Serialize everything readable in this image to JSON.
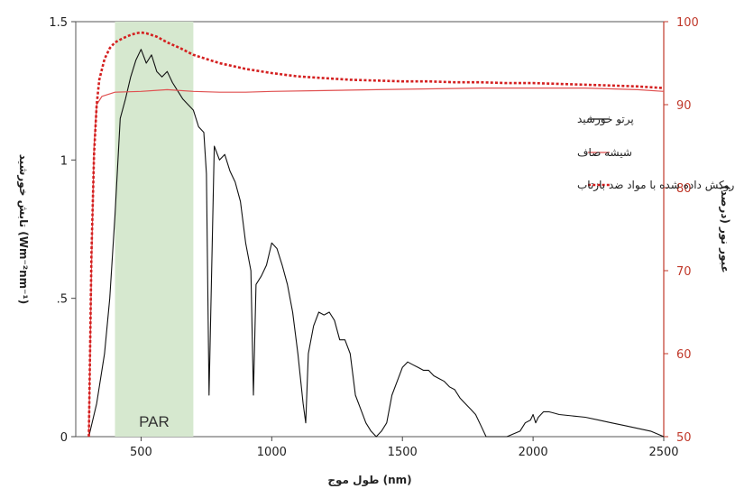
{
  "chart_data": {
    "type": "line",
    "title": "",
    "xlabel": "طول موج (nm)",
    "ylabel_left": "تابش خورشید (Wm⁻²nm⁻¹)",
    "ylabel_right": "عبور نور (درصد)",
    "xlim": [
      250,
      2500
    ],
    "ylim_left": [
      0,
      1.5
    ],
    "ylim_right": [
      50,
      100
    ],
    "x_ticks": [
      500,
      1000,
      1500,
      2000,
      2500
    ],
    "x_tick_labels": [
      "500",
      "1000",
      "1500",
      "2000",
      "2500"
    ],
    "y_left_ticks": [
      0,
      0.5,
      1,
      1.5
    ],
    "y_left_tick_labels": [
      "0",
      ".5",
      "1",
      "1.5"
    ],
    "y_right_ticks": [
      50,
      60,
      70,
      80,
      90,
      100
    ],
    "y_right_tick_labels": [
      "50",
      "60",
      "70",
      "80",
      "90",
      "100"
    ],
    "band": {
      "label": "PAR",
      "x_start": 400,
      "x_end": 700,
      "color": "#d6e8cf"
    },
    "legend_position": "right-upper",
    "series": [
      {
        "name": "پرتو خورشید",
        "axis": "left",
        "color": "#111111",
        "style": "solid",
        "x": [
          300,
          330,
          360,
          380,
          400,
          420,
          440,
          460,
          480,
          500,
          520,
          540,
          560,
          580,
          600,
          620,
          640,
          660,
          680,
          700,
          720,
          740,
          750,
          760,
          780,
          800,
          820,
          840,
          860,
          880,
          900,
          920,
          930,
          940,
          960,
          980,
          1000,
          1020,
          1040,
          1060,
          1080,
          1100,
          1120,
          1130,
          1140,
          1160,
          1180,
          1200,
          1220,
          1240,
          1260,
          1280,
          1300,
          1320,
          1340,
          1360,
          1380,
          1400,
          1420,
          1440,
          1460,
          1480,
          1500,
          1520,
          1540,
          1560,
          1580,
          1600,
          1620,
          1640,
          1660,
          1680,
          1700,
          1720,
          1740,
          1760,
          1780,
          1800,
          1820,
          1850,
          1900,
          1950,
          1970,
          1990,
          2000,
          2010,
          2020,
          2040,
          2060,
          2080,
          2100,
          2150,
          2200,
          2250,
          2300,
          2350,
          2400,
          2450,
          2500
        ],
        "values": [
          0.0,
          0.12,
          0.3,
          0.5,
          0.8,
          1.15,
          1.22,
          1.3,
          1.36,
          1.4,
          1.35,
          1.38,
          1.32,
          1.3,
          1.32,
          1.28,
          1.25,
          1.22,
          1.2,
          1.18,
          1.12,
          1.1,
          0.95,
          0.15,
          1.05,
          1.0,
          1.02,
          0.96,
          0.92,
          0.85,
          0.7,
          0.6,
          0.15,
          0.55,
          0.58,
          0.62,
          0.7,
          0.68,
          0.62,
          0.55,
          0.45,
          0.3,
          0.12,
          0.05,
          0.3,
          0.4,
          0.45,
          0.44,
          0.45,
          0.42,
          0.35,
          0.35,
          0.3,
          0.15,
          0.1,
          0.05,
          0.02,
          0.0,
          0.02,
          0.05,
          0.15,
          0.2,
          0.25,
          0.27,
          0.26,
          0.25,
          0.24,
          0.24,
          0.22,
          0.21,
          0.2,
          0.18,
          0.17,
          0.14,
          0.12,
          0.1,
          0.08,
          0.04,
          0.0,
          0.0,
          0.0,
          0.02,
          0.05,
          0.06,
          0.08,
          0.05,
          0.07,
          0.09,
          0.09,
          0.085,
          0.08,
          0.075,
          0.07,
          0.06,
          0.05,
          0.04,
          0.03,
          0.02,
          0.0
        ]
      },
      {
        "name": "شیشه صاف",
        "axis": "right",
        "color": "#e05050",
        "style": "solid",
        "x": [
          300,
          310,
          320,
          330,
          350,
          400,
          500,
          600,
          700,
          800,
          900,
          1000,
          1200,
          1400,
          1600,
          1800,
          2000,
          2200,
          2400,
          2500
        ],
        "values": [
          50,
          70,
          85,
          90,
          91,
          91.5,
          91.6,
          91.8,
          91.6,
          91.5,
          91.5,
          91.6,
          91.7,
          91.8,
          91.9,
          92.0,
          92.0,
          92.0,
          91.8,
          91.6
        ]
      },
      {
        "name": "شیشه صاف روکش داده شده با مواد ضد بازتاب",
        "axis": "right",
        "color": "#d42020",
        "style": "dotted",
        "x": [
          300,
          310,
          320,
          330,
          340,
          360,
          380,
          400,
          430,
          460,
          480,
          500,
          520,
          560,
          600,
          650,
          700,
          800,
          900,
          1000,
          1100,
          1200,
          1300,
          1400,
          1500,
          1600,
          1700,
          1800,
          1900,
          2000,
          2100,
          2200,
          2300,
          2400,
          2500
        ],
        "values": [
          50,
          72,
          84,
          90,
          93,
          95.5,
          96.8,
          97.5,
          98.0,
          98.4,
          98.6,
          98.7,
          98.6,
          98.2,
          97.5,
          96.8,
          96.0,
          95.0,
          94.3,
          93.8,
          93.4,
          93.2,
          93.0,
          92.9,
          92.8,
          92.8,
          92.7,
          92.7,
          92.6,
          92.6,
          92.5,
          92.4,
          92.3,
          92.2,
          92.0
        ]
      }
    ]
  }
}
